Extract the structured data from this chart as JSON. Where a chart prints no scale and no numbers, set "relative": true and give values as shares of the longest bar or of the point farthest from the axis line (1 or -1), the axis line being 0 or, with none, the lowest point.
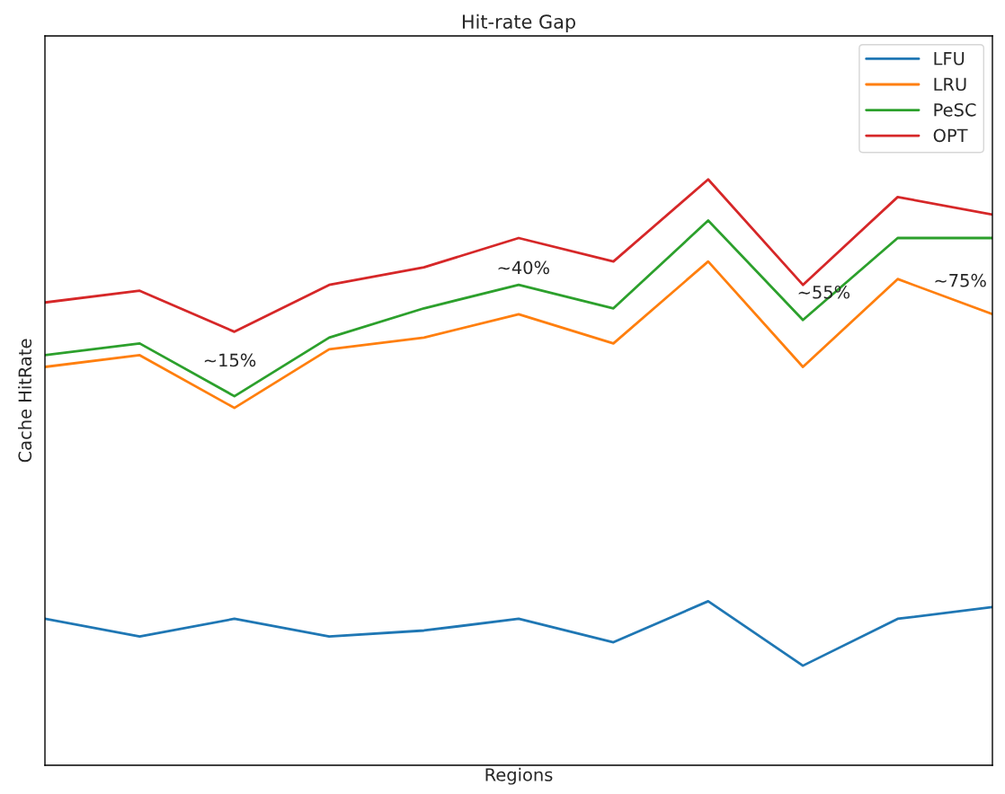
{
  "chart_data": {
    "type": "line",
    "title": "Hit-rate Gap",
    "xlabel": "Regions",
    "ylabel": "Cache HitRate",
    "relative": true,
    "categories": [
      null,
      null,
      null,
      null,
      null,
      null,
      null,
      null,
      null,
      null,
      null
    ],
    "series": [
      {
        "name": "LFU",
        "color": "#1f77b4",
        "values": [
          0.25,
          0.22,
          0.25,
          0.22,
          0.23,
          0.25,
          0.21,
          0.28,
          0.17,
          0.25,
          0.27
        ]
      },
      {
        "name": "LRU",
        "color": "#ff7f0e",
        "values": [
          0.68,
          0.7,
          0.61,
          0.71,
          0.73,
          0.77,
          0.72,
          0.86,
          0.68,
          0.83,
          0.77
        ]
      },
      {
        "name": "PeSC",
        "color": "#2ca02c",
        "values": [
          0.7,
          0.72,
          0.63,
          0.73,
          0.78,
          0.82,
          0.78,
          0.93,
          0.76,
          0.9,
          0.9
        ]
      },
      {
        "name": "OPT",
        "color": "#d62728",
        "values": [
          0.79,
          0.81,
          0.74,
          0.82,
          0.85,
          0.9,
          0.86,
          1.0,
          0.82,
          0.97,
          0.94
        ]
      }
    ],
    "annotations": [
      "~15%",
      "~40%",
      "~55%",
      "~75%"
    ],
    "legend": "top right",
    "marker": "none",
    "line_style": "solid",
    "tick_labels": false
  }
}
